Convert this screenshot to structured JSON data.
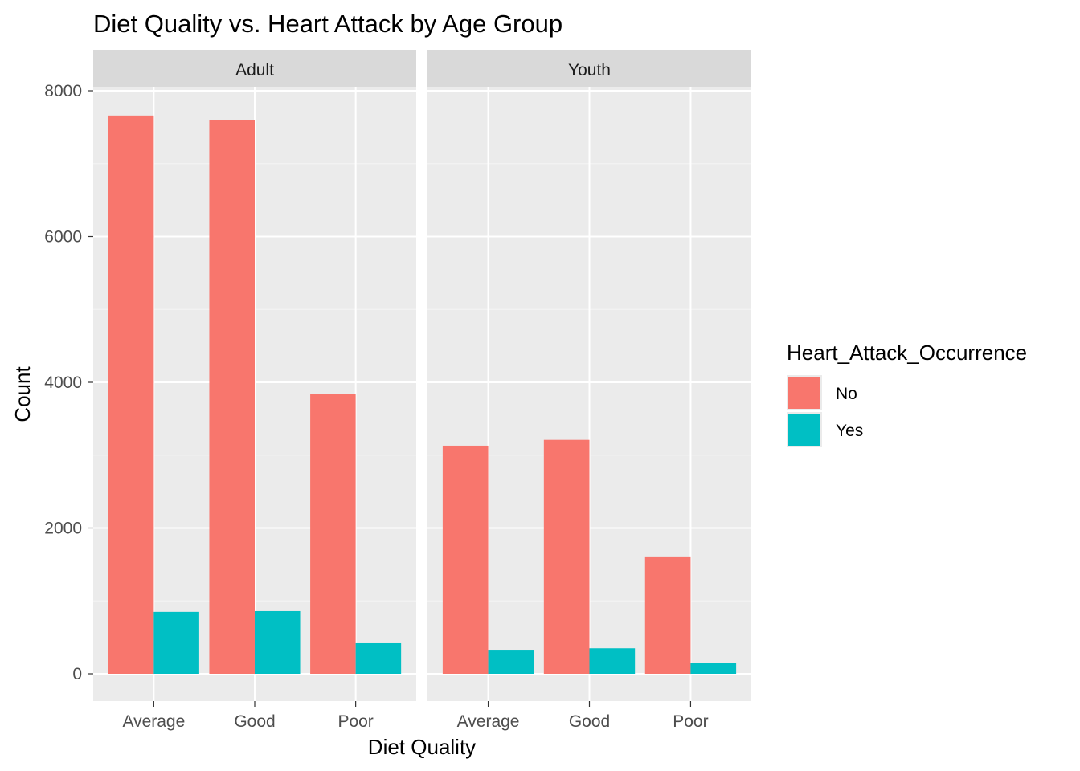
{
  "chart_data": {
    "type": "bar",
    "title": "Diet Quality vs. Heart Attack by Age Group",
    "xlabel": "Diet Quality",
    "ylabel": "Count",
    "ylim": [
      0,
      8000
    ],
    "y_ticks": [
      0,
      2000,
      4000,
      6000,
      8000
    ],
    "grid": true,
    "categories": [
      "Average",
      "Good",
      "Poor"
    ],
    "legend": {
      "title": "Heart_Attack_Occurrence",
      "position": "right",
      "entries": [
        {
          "label": "No",
          "color": "#F8766D"
        },
        {
          "label": "Yes",
          "color": "#00BFC4"
        }
      ]
    },
    "facets": [
      {
        "label": "Adult",
        "series": [
          {
            "name": "No",
            "values": [
              7660,
              7600,
              3840
            ]
          },
          {
            "name": "Yes",
            "values": [
              850,
              860,
              430
            ]
          }
        ]
      },
      {
        "label": "Youth",
        "series": [
          {
            "name": "No",
            "values": [
              3130,
              3210,
              1610
            ]
          },
          {
            "name": "Yes",
            "values": [
              330,
              350,
              150
            ]
          }
        ]
      }
    ]
  },
  "colors": {
    "panel_bg": "#EBEBEB",
    "strip_bg": "#D9D9D9",
    "grid_major": "#FFFFFF",
    "grid_minor": "#F5F5F5",
    "tick_text": "#4D4D4D"
  }
}
